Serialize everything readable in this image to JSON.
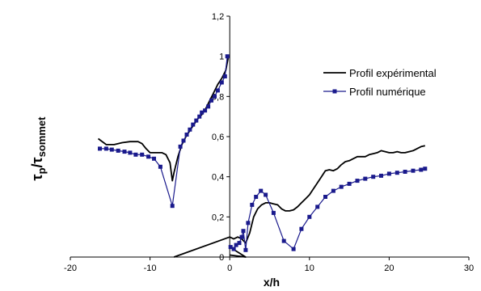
{
  "chart_data": {
    "type": "line",
    "title": "",
    "xlabel": "x/h",
    "ylabel": {
      "main1": "τ",
      "sub1": "p",
      "slash": "/",
      "main2": "τ",
      "sub2": "sommet"
    },
    "xlim": [
      -20,
      30
    ],
    "ylim": [
      0,
      1.2
    ],
    "x_ticks": [
      -20,
      -10,
      0,
      10,
      20,
      30
    ],
    "x_tick_labels": [
      "-20",
      "-10",
      "0",
      "10",
      "20",
      "30"
    ],
    "y_ticks": [
      0,
      0.2,
      0.4,
      0.6,
      0.8,
      1,
      1.2
    ],
    "y_tick_labels": [
      "0",
      "0,2",
      "0,4",
      "0,6",
      "0,8",
      "1",
      "1,2"
    ],
    "grid": false,
    "legend_position": "top-right",
    "series": [
      {
        "name": "Profil expérimental",
        "color": "#000000",
        "marker": "none",
        "segments": [
          [
            [
              -16.5,
              0.59
            ],
            [
              -15.5,
              0.56
            ],
            [
              -14.5,
              0.56
            ],
            [
              -13.5,
              0.57
            ],
            [
              -12.5,
              0.575
            ],
            [
              -11.5,
              0.575
            ],
            [
              -11,
              0.565
            ],
            [
              -10.5,
              0.54
            ],
            [
              -10,
              0.52
            ],
            [
              -9.5,
              0.52
            ],
            [
              -9,
              0.52
            ],
            [
              -8.5,
              0.52
            ],
            [
              -8,
              0.51
            ],
            [
              -7.5,
              0.47
            ],
            [
              -7.2,
              0.38
            ],
            [
              -7,
              0.42
            ],
            [
              -6.5,
              0.5
            ],
            [
              -6,
              0.56
            ],
            [
              -5.5,
              0.6
            ],
            [
              -5,
              0.63
            ],
            [
              -4.5,
              0.66
            ],
            [
              -4,
              0.69
            ],
            [
              -3.5,
              0.71
            ],
            [
              -3,
              0.74
            ],
            [
              -2.5,
              0.78
            ],
            [
              -2,
              0.82
            ],
            [
              -1.5,
              0.86
            ],
            [
              -1,
              0.89
            ],
            [
              -0.5,
              0.93
            ],
            [
              -0.2,
              0.99
            ]
          ],
          [
            [
              -7,
              0.0
            ],
            [
              0,
              0.1
            ],
            [
              0.5,
              0.09
            ],
            [
              1,
              0.1
            ],
            [
              1.5,
              0.09
            ],
            [
              2,
              0.07
            ],
            [
              2.5,
              0.12
            ],
            [
              3,
              0.2
            ],
            [
              3.5,
              0.24
            ],
            [
              4,
              0.26
            ],
            [
              4.5,
              0.27
            ],
            [
              5,
              0.27
            ],
            [
              5.5,
              0.265
            ],
            [
              6,
              0.26
            ],
            [
              6.5,
              0.24
            ],
            [
              7,
              0.23
            ],
            [
              7.5,
              0.23
            ],
            [
              8,
              0.235
            ],
            [
              8.5,
              0.25
            ],
            [
              9,
              0.27
            ],
            [
              9.5,
              0.29
            ],
            [
              10,
              0.31
            ],
            [
              10.5,
              0.34
            ],
            [
              11,
              0.37
            ],
            [
              11.5,
              0.4
            ],
            [
              12,
              0.43
            ],
            [
              12.5,
              0.435
            ],
            [
              13,
              0.43
            ],
            [
              13.5,
              0.44
            ],
            [
              14,
              0.46
            ],
            [
              14.5,
              0.475
            ],
            [
              15,
              0.48
            ],
            [
              15.5,
              0.49
            ],
            [
              16,
              0.5
            ],
            [
              16.5,
              0.5
            ],
            [
              17,
              0.5
            ],
            [
              17.5,
              0.51
            ],
            [
              18,
              0.515
            ],
            [
              18.5,
              0.52
            ],
            [
              19,
              0.53
            ],
            [
              19.5,
              0.525
            ],
            [
              20,
              0.52
            ],
            [
              20.5,
              0.52
            ],
            [
              21,
              0.525
            ],
            [
              21.5,
              0.52
            ],
            [
              22,
              0.52
            ],
            [
              22.5,
              0.525
            ],
            [
              23,
              0.53
            ],
            [
              23.5,
              0.54
            ],
            [
              24,
              0.55
            ],
            [
              24.5,
              0.555
            ]
          ],
          [
            [
              0,
              0.01
            ],
            [
              2,
              0.0
            ],
            [
              0,
              0.05
            ]
          ]
        ]
      },
      {
        "name": "Profil numérique",
        "color": "#1a1a8c",
        "marker": "square",
        "segments": [
          [
            [
              -16.3,
              0.54
            ],
            [
              -15.5,
              0.54
            ],
            [
              -14.8,
              0.535
            ],
            [
              -14,
              0.53
            ],
            [
              -13.2,
              0.525
            ],
            [
              -12.5,
              0.52
            ],
            [
              -11.8,
              0.51
            ],
            [
              -11,
              0.51
            ],
            [
              -10.2,
              0.5
            ],
            [
              -9.5,
              0.49
            ],
            [
              -8.7,
              0.45
            ],
            [
              -7.2,
              0.255
            ],
            [
              -6.2,
              0.55
            ],
            [
              -5.8,
              0.58
            ],
            [
              -5.4,
              0.61
            ],
            [
              -5,
              0.635
            ],
            [
              -4.6,
              0.66
            ],
            [
              -4.2,
              0.68
            ],
            [
              -3.8,
              0.7
            ],
            [
              -3.5,
              0.72
            ],
            [
              -3.1,
              0.73
            ],
            [
              -2.7,
              0.75
            ],
            [
              -2.3,
              0.78
            ],
            [
              -1.9,
              0.8
            ],
            [
              -1.5,
              0.83
            ],
            [
              -1,
              0.87
            ],
            [
              -0.6,
              0.9
            ],
            [
              -0.3,
              1.0
            ]
          ],
          [
            [
              0.1,
              0.05
            ],
            [
              0.5,
              0.04
            ],
            [
              0.8,
              0.06
            ],
            [
              1.2,
              0.07
            ],
            [
              1.5,
              0.1
            ],
            [
              1.7,
              0.13
            ],
            [
              2,
              0.035
            ],
            [
              2.3,
              0.17
            ],
            [
              2.8,
              0.26
            ],
            [
              3.3,
              0.3
            ],
            [
              3.9,
              0.33
            ],
            [
              4.5,
              0.31
            ],
            [
              5.5,
              0.22
            ],
            [
              6.8,
              0.08
            ],
            [
              8,
              0.04
            ],
            [
              9,
              0.14
            ],
            [
              10,
              0.2
            ],
            [
              11,
              0.25
            ],
            [
              12,
              0.3
            ],
            [
              13,
              0.33
            ],
            [
              14,
              0.35
            ],
            [
              15,
              0.365
            ],
            [
              16,
              0.38
            ],
            [
              17,
              0.39
            ],
            [
              18,
              0.4
            ],
            [
              19,
              0.405
            ],
            [
              20,
              0.415
            ],
            [
              21,
              0.42
            ],
            [
              22,
              0.425
            ],
            [
              23,
              0.43
            ],
            [
              24,
              0.435
            ],
            [
              24.5,
              0.44
            ]
          ]
        ]
      }
    ]
  }
}
